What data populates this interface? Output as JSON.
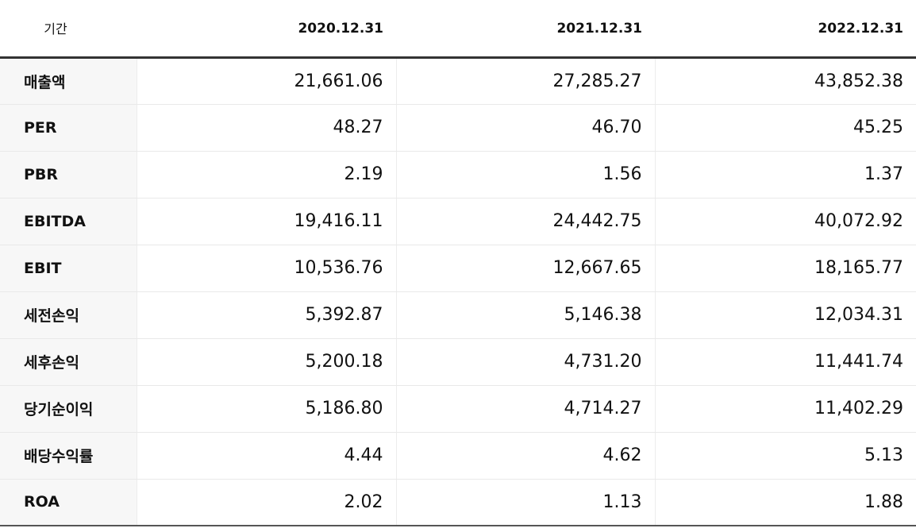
{
  "table": {
    "period_label": "기간",
    "columns": [
      "2020.12.31",
      "2021.12.31",
      "2022.12.31"
    ],
    "rows": [
      {
        "label": "매출액",
        "values": [
          "21,661.06",
          "27,285.27",
          "43,852.38"
        ]
      },
      {
        "label": "PER",
        "values": [
          "48.27",
          "46.70",
          "45.25"
        ]
      },
      {
        "label": "PBR",
        "values": [
          "2.19",
          "1.56",
          "1.37"
        ]
      },
      {
        "label": "EBITDA",
        "values": [
          "19,416.11",
          "24,442.75",
          "40,072.92"
        ]
      },
      {
        "label": "EBIT",
        "values": [
          "10,536.76",
          "12,667.65",
          "18,165.77"
        ]
      },
      {
        "label": "세전손익",
        "values": [
          "5,392.87",
          "5,146.38",
          "12,034.31"
        ]
      },
      {
        "label": "세후손익",
        "values": [
          "5,200.18",
          "4,731.20",
          "11,441.74"
        ]
      },
      {
        "label": "당기순이익",
        "values": [
          "5,186.80",
          "4,714.27",
          "11,402.29"
        ]
      },
      {
        "label": "배당수익률",
        "values": [
          "4.44",
          "4.62",
          "5.13"
        ]
      },
      {
        "label": "ROA",
        "values": [
          "2.02",
          "1.13",
          "1.88"
        ]
      }
    ]
  }
}
